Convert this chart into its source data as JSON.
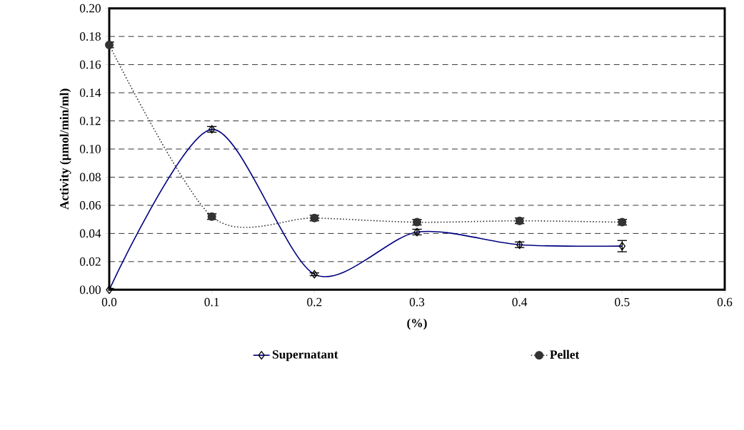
{
  "chart_data": {
    "type": "line",
    "xlabel": "(%)",
    "ylabel": "Activity (µmol/min/ml)",
    "x": [
      0.0,
      0.1,
      0.2,
      0.3,
      0.4,
      0.5
    ],
    "series": [
      {
        "name": "Supernatant",
        "color": "#000080",
        "values": [
          0.0,
          0.114,
          0.011,
          0.041,
          0.032,
          0.031
        ],
        "errors": [
          0.001,
          0.002,
          0.001,
          0.002,
          0.002,
          0.004
        ],
        "marker": "diamond",
        "line_style": "solid"
      },
      {
        "name": "Pellet",
        "color": "#333333",
        "values": [
          0.174,
          0.052,
          0.051,
          0.048,
          0.049,
          0.048
        ],
        "errors": [
          0.002,
          0.002,
          0.002,
          0.002,
          0.002,
          0.002
        ],
        "marker": "circle",
        "line_style": "dotted"
      }
    ],
    "xlim": [
      0,
      0.6
    ],
    "ylim": [
      0,
      0.2
    ],
    "xticks": [
      {
        "value": 0,
        "label": "0.0"
      },
      0.1,
      0.2,
      0.3,
      0.4,
      0.5,
      0.6
    ],
    "yticks": [
      {
        "value": 0,
        "label": "0.00"
      },
      0.02,
      0.04,
      0.06,
      0.08,
      {
        "value": 0.1,
        "label": "0.10"
      },
      0.12,
      0.14,
      0.16,
      0.18,
      {
        "value": 0.2,
        "label": "0.20"
      }
    ],
    "grid": "y",
    "legend": "bottom"
  }
}
